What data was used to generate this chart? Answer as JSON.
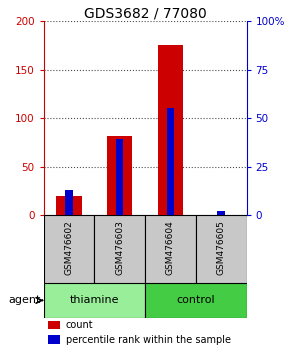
{
  "title": "GDS3682 / 77080",
  "samples": [
    "GSM476602",
    "GSM476603",
    "GSM476604",
    "GSM476605"
  ],
  "count_values": [
    20,
    82,
    175,
    0
  ],
  "percentile_values": [
    13,
    39,
    55,
    2
  ],
  "left_ylim": [
    0,
    200
  ],
  "right_ylim": [
    0,
    100
  ],
  "left_yticks": [
    0,
    50,
    100,
    150,
    200
  ],
  "right_yticks": [
    0,
    25,
    50,
    75,
    100
  ],
  "right_yticklabels": [
    "0",
    "25",
    "50",
    "75",
    "100%"
  ],
  "left_color": "#cc0000",
  "right_color": "#0000cc",
  "red_bar_width": 0.5,
  "blue_bar_width": 0.15,
  "groups": [
    {
      "label": "thiamine",
      "samples": [
        0,
        1
      ],
      "color": "#99ee99"
    },
    {
      "label": "control",
      "samples": [
        2,
        3
      ],
      "color": "#44cc44"
    }
  ],
  "agent_label": "agent",
  "legend_count_label": "count",
  "legend_pct_label": "percentile rank within the sample",
  "title_fontsize": 10,
  "tick_fontsize": 7.5,
  "sample_label_fontsize": 6.5,
  "group_label_fontsize": 8,
  "legend_fontsize": 7,
  "sample_bg_color": "#c8c8c8",
  "plot_bg": "#ffffff",
  "group_row_bg": "#f5f5f5"
}
